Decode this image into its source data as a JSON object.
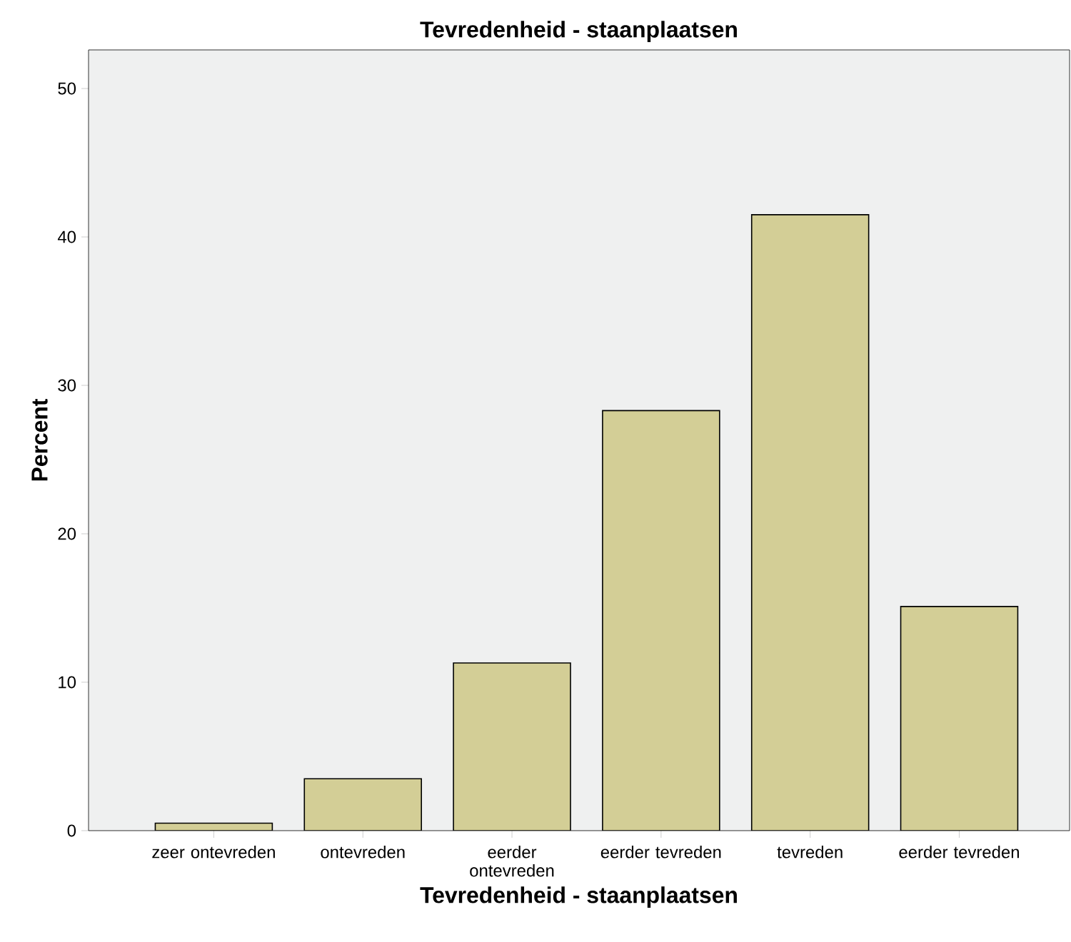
{
  "chart_data": {
    "type": "bar",
    "title": "Tevredenheid - staanplaatsen",
    "xlabel": "Tevredenheid - staanplaatsen",
    "ylabel": "Percent",
    "categories": [
      "zeer ontevreden",
      "ontevreden",
      "eerder ontevreden",
      "eerder tevreden",
      "tevreden",
      "eerder tevreden"
    ],
    "values": [
      0.5,
      3.5,
      11.3,
      28.3,
      41.5,
      15.1
    ],
    "color": "#d3ce96",
    "ylim": [
      0,
      52.6
    ],
    "yticks": [
      0,
      10,
      20,
      30,
      40,
      50
    ],
    "grid": false
  }
}
